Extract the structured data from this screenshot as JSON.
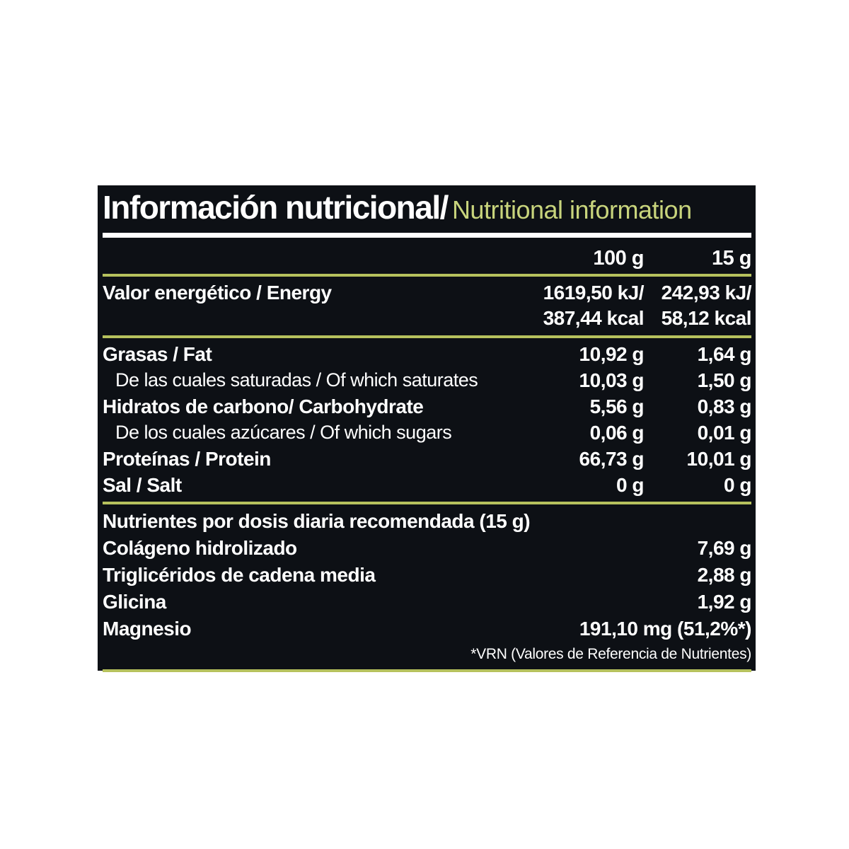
{
  "header": {
    "title_es": "Información nutricional/",
    "title_en": "Nutritional information"
  },
  "columns": {
    "col1": "100 g",
    "col2": "15 g"
  },
  "energy": {
    "label": "Valor energético / Energy",
    "per100_kj": "1619,50 kJ/",
    "per100_kcal": "387,44 kcal",
    "per15_kj": "242,93 kJ/",
    "per15_kcal": "58,12 kcal"
  },
  "rows": [
    {
      "label": "Grasas / Fat",
      "v100": "10,92 g",
      "v15": "1,64 g"
    },
    {
      "label": "De las cuales saturadas / Of which saturates",
      "v100": "10,03 g",
      "v15": "1,50 g"
    },
    {
      "label": "Hidratos de carbono/ Carbohydrate",
      "v100": "5,56 g",
      "v15": "0,83 g"
    },
    {
      "label": "De los cuales azúcares / Of which sugars",
      "v100": "0,06 g",
      "v15": "0,01 g"
    },
    {
      "label": "Proteínas / Protein",
      "v100": "66,73 g",
      "v15": "10,01 g"
    },
    {
      "label": "Sal / Salt",
      "v100": "0 g",
      "v15": "0 g"
    }
  ],
  "daily": {
    "header": "Nutrientes por dosis diaria recomendada (15 g)",
    "rows": [
      {
        "label": "Colágeno hidrolizado",
        "value": "7,69 g"
      },
      {
        "label": "Triglicéridos de cadena media",
        "value": "2,88 g"
      },
      {
        "label": "Glicina",
        "value": "1,92 g"
      },
      {
        "label": "Magnesio",
        "value": "191,10 mg (51,2%*)"
      }
    ],
    "footnote": "*VRN (Valores de Referencia de Nutrientes)"
  },
  "colors": {
    "panel_bg": "#0d1015",
    "accent_green": "#c8d47c",
    "divider_olive": "#b6c15d",
    "text_white": "#ffffff"
  }
}
